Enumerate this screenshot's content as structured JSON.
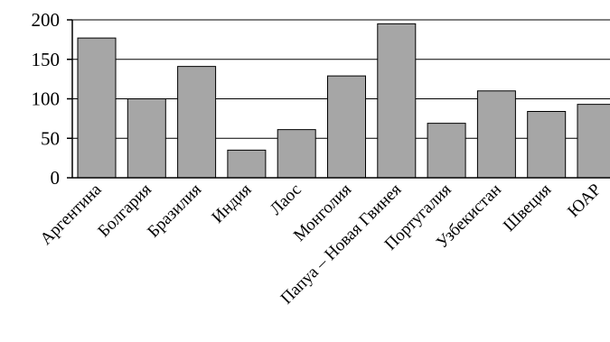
{
  "chart_data": {
    "type": "bar",
    "title": "",
    "xlabel": "",
    "ylabel": "",
    "categories": [
      "Аргентина",
      "Болгария",
      "Бразилия",
      "Индия",
      "Лаос",
      "Монголия",
      "Папуа – Новая Гвинея",
      "Португалия",
      "Узбекистан",
      "Швеция",
      "ЮАР"
    ],
    "values": [
      177,
      100,
      141,
      35,
      61,
      129,
      195,
      69,
      110,
      84,
      93
    ],
    "ylim": [
      0,
      200
    ],
    "yticks": [
      "0",
      "50",
      "100",
      "150",
      "200"
    ],
    "grid": true,
    "legend": "none",
    "colors": {
      "bar_fill": "#a6a6a6",
      "bar_stroke": "#000000",
      "grid": "#000000",
      "background": "#ffffff"
    }
  }
}
